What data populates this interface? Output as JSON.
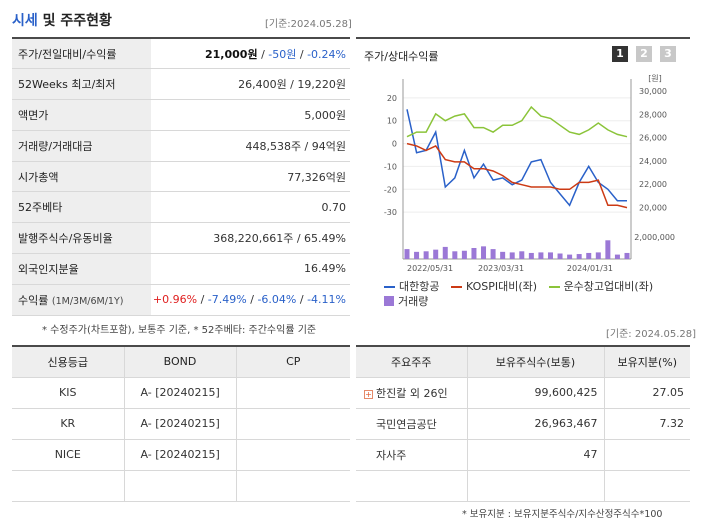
{
  "header": {
    "title_blue": "시세",
    "title_rest": " 및 주주현황",
    "date": "[기준:2024.05.28]"
  },
  "quote": {
    "price_label": "주가/전일대비/수익률",
    "price": "21,000원",
    "change": "-50원",
    "change_pct": "-0.24%",
    "sep": " / ",
    "rows": [
      {
        "label": "52Weeks 최고/최저",
        "value": "26,400원 / 19,220원"
      },
      {
        "label": "액면가",
        "value": "5,000원"
      },
      {
        "label": "거래량/거래대금",
        "value": "448,538주 / 94억원"
      },
      {
        "label": "시가총액",
        "value": "77,326억원"
      },
      {
        "label": "52주베타",
        "value": "0.70"
      },
      {
        "label": "발행주식수/유동비율",
        "value": "368,220,661주 / 65.49%"
      },
      {
        "label": "외국인지분율",
        "value": "16.49%"
      }
    ],
    "return_label": "수익률",
    "return_label_sub": "(1M/3M/6M/1Y)",
    "returns": [
      "+0.96%",
      "-7.49%",
      "-6.04%",
      "-4.11%"
    ],
    "return_sep": "/",
    "note": "* 수정주가(차트포함), 보통주 기준, * 52주베타: 주간수익률 기준"
  },
  "chart_panel": {
    "title": "주가/상대수익률",
    "buttons": [
      "1",
      "2",
      "3"
    ],
    "active_button": 0
  },
  "chart_data": {
    "type": "line",
    "left_axis": {
      "ticks": [
        "20",
        "10",
        "0",
        "-10",
        "-20",
        "-30"
      ],
      "min": -33,
      "max": 23
    },
    "right_axis": {
      "unit": "[원]",
      "ticks": [
        "30,000",
        "28,000",
        "26,000",
        "24,000",
        "22,000",
        "20,000"
      ],
      "min": 19000,
      "max": 30000
    },
    "volume_axis": {
      "ticks": [
        "2,000,000"
      ],
      "max": 2000000
    },
    "x_labels": [
      "2022/05/31",
      "2023/03/31",
      "2024/01/31"
    ],
    "series": [
      {
        "name": "대한항공",
        "axis": "left",
        "color": "#2a61c9",
        "values": [
          15,
          -4,
          -3,
          5,
          -19,
          -15,
          -3,
          -15,
          -9,
          -16,
          -15,
          -18,
          -16,
          -8,
          -7,
          -17,
          -22,
          -27,
          -17,
          -10,
          -17,
          -20,
          -25,
          -25
        ]
      },
      {
        "name": "KOSPI대비(좌)",
        "axis": "left",
        "color": "#cc3a14",
        "values": [
          0,
          -1,
          -3,
          -1,
          -7,
          -8,
          -8,
          -11,
          -11,
          -12,
          -14,
          -17,
          -18,
          -19,
          -19,
          -19,
          -20,
          -20,
          -17,
          -17,
          -16,
          -27,
          -27,
          -28
        ]
      },
      {
        "name": "운수창고업대비(좌)",
        "axis": "left",
        "color": "#8bc43a",
        "values": [
          3,
          5,
          5,
          13,
          10,
          12,
          13,
          7,
          7,
          5,
          8,
          8,
          10,
          16,
          12,
          11,
          8,
          5,
          4,
          6,
          9,
          6,
          4,
          3
        ]
      }
    ],
    "volume": {
      "name": "거래량",
      "color": "#9b78d6",
      "values": [
        900000,
        650000,
        700000,
        850000,
        1100000,
        700000,
        750000,
        1000000,
        1150000,
        900000,
        650000,
        600000,
        700000,
        550000,
        600000,
        600000,
        500000,
        400000,
        450000,
        550000,
        600000,
        1700000,
        400000,
        550000
      ]
    }
  },
  "date2": "[기준: 2024.05.28]",
  "credit": {
    "headers": [
      "신용등급",
      "BOND",
      "CP"
    ],
    "rows": [
      {
        "agency": "KIS",
        "bond": "A-  [20240215]",
        "cp": ""
      },
      {
        "agency": "KR",
        "bond": "A-  [20240215]",
        "cp": ""
      },
      {
        "agency": "NICE",
        "bond": "A-  [20240215]",
        "cp": ""
      },
      {
        "agency": "",
        "bond": "",
        "cp": ""
      }
    ]
  },
  "holders": {
    "headers": [
      "주요주주",
      "보유주식수(보통)",
      "보유지분(%)"
    ],
    "rows": [
      {
        "name": "한진칼 외 26인",
        "shares": "99,600,425",
        "pct": "27.05",
        "expand": "+"
      },
      {
        "name": "국민연금공단",
        "shares": "26,963,467",
        "pct": "7.32",
        "expand": ""
      },
      {
        "name": "자사주",
        "shares": "47",
        "pct": "",
        "expand": ""
      },
      {
        "name": "",
        "shares": "",
        "pct": "",
        "expand": ""
      }
    ],
    "note": "* 보유지분 : 보유지분주식수/지수산정주식수*100"
  }
}
